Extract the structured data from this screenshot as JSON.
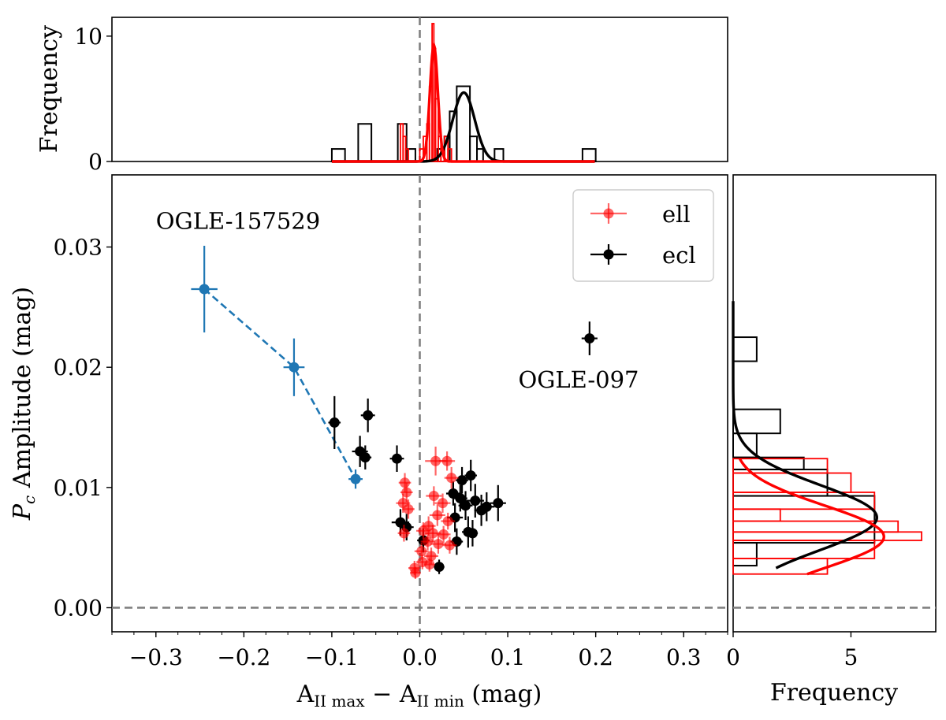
{
  "chart_data": {
    "type": "scatter",
    "main": {
      "xlabel_base": "A",
      "xlabel_sub1": "II max",
      "xlabel_mid": " − A",
      "xlabel_sub2": "II min",
      "xlabel_unit": " (mag)",
      "ylabel_var": "P",
      "ylabel_sub": "c",
      "ylabel_rest": " Amplitude (mag)",
      "xlim": [
        -0.35,
        0.35
      ],
      "ylim": [
        -0.002,
        0.036
      ],
      "xticks": [
        -0.3,
        -0.2,
        -0.1,
        0.0,
        0.1,
        0.2,
        0.3
      ],
      "xtick_labels": [
        "−0.3",
        "−0.2",
        "−0.1",
        "0.0",
        "0.1",
        "0.2",
        "0.3"
      ],
      "yticks": [
        0.0,
        0.01,
        0.02,
        0.03
      ],
      "ytick_labels": [
        "0.00",
        "0.01",
        "0.02",
        "0.03"
      ],
      "ref_lines": {
        "x": 0.0,
        "y": 0.0
      },
      "legend": {
        "position": "top-right",
        "entries": [
          {
            "label": "ell",
            "color": "#ff0000"
          },
          {
            "label": "ecl",
            "color": "#000000"
          }
        ]
      },
      "annotations": [
        {
          "text": "OGLE-157529",
          "x": -0.3,
          "y": 0.0315
        },
        {
          "text": "OGLE-097",
          "x": 0.112,
          "y": 0.0183
        }
      ],
      "series": [
        {
          "name": "OGLE-157529 track",
          "color": "#1f77b4",
          "connected": true,
          "points": [
            {
              "x": -0.245,
              "y": 0.0265,
              "xerr": 0.015,
              "yerr": 0.0036
            },
            {
              "x": -0.143,
              "y": 0.02,
              "xerr": 0.012,
              "yerr": 0.0024
            },
            {
              "x": -0.073,
              "y": 0.0107,
              "xerr": 0.008,
              "yerr": 0.0008
            }
          ]
        },
        {
          "name": "ecl",
          "color": "#000000",
          "points": [
            {
              "x": 0.193,
              "y": 0.0224,
              "xerr": 0.009,
              "yerr": 0.0014
            },
            {
              "x": -0.097,
              "y": 0.0154,
              "xerr": 0.007,
              "yerr": 0.0022
            },
            {
              "x": -0.059,
              "y": 0.016,
              "xerr": 0.008,
              "yerr": 0.0014
            },
            {
              "x": -0.068,
              "y": 0.013,
              "xerr": 0.009,
              "yerr": 0.0013
            },
            {
              "x": -0.062,
              "y": 0.0125,
              "xerr": 0.007,
              "yerr": 0.001
            },
            {
              "x": -0.026,
              "y": 0.0124,
              "xerr": 0.008,
              "yerr": 0.0011
            },
            {
              "x": -0.022,
              "y": 0.0071,
              "xerr": 0.01,
              "yerr": 0.0011
            },
            {
              "x": -0.015,
              "y": 0.0067,
              "xerr": 0.008,
              "yerr": 0.0011
            },
            {
              "x": 0.004,
              "y": 0.0056,
              "xerr": 0.007,
              "yerr": 0.001
            },
            {
              "x": 0.022,
              "y": 0.0034,
              "xerr": 0.006,
              "yerr": 0.0006
            },
            {
              "x": 0.038,
              "y": 0.0095,
              "xerr": 0.008,
              "yerr": 0.001
            },
            {
              "x": 0.048,
              "y": 0.0106,
              "xerr": 0.007,
              "yerr": 0.0011
            },
            {
              "x": 0.058,
              "y": 0.011,
              "xerr": 0.007,
              "yerr": 0.0013
            },
            {
              "x": 0.046,
              "y": 0.0091,
              "xerr": 0.008,
              "yerr": 0.0011
            },
            {
              "x": 0.052,
              "y": 0.0085,
              "xerr": 0.008,
              "yerr": 0.0012
            },
            {
              "x": 0.063,
              "y": 0.0089,
              "xerr": 0.01,
              "yerr": 0.0014
            },
            {
              "x": 0.07,
              "y": 0.0081,
              "xerr": 0.008,
              "yerr": 0.0013
            },
            {
              "x": 0.076,
              "y": 0.0084,
              "xerr": 0.009,
              "yerr": 0.0012
            },
            {
              "x": 0.089,
              "y": 0.0087,
              "xerr": 0.009,
              "yerr": 0.0015
            },
            {
              "x": 0.04,
              "y": 0.0075,
              "xerr": 0.009,
              "yerr": 0.0012
            },
            {
              "x": 0.055,
              "y": 0.0063,
              "xerr": 0.007,
              "yerr": 0.0013
            },
            {
              "x": 0.06,
              "y": 0.0062,
              "xerr": 0.006,
              "yerr": 0.0011
            },
            {
              "x": 0.042,
              "y": 0.0055,
              "xerr": 0.007,
              "yerr": 0.0011
            }
          ]
        },
        {
          "name": "ell",
          "color": "#ff0000",
          "alpha": 0.6,
          "points": [
            {
              "x": -0.017,
              "y": 0.0104,
              "xerr": 0.007,
              "yerr": 0.0008
            },
            {
              "x": -0.015,
              "y": 0.0096,
              "xerr": 0.007,
              "yerr": 0.0008
            },
            {
              "x": -0.019,
              "y": 0.0087,
              "xerr": 0.008,
              "yerr": 0.0008
            },
            {
              "x": -0.013,
              "y": 0.0082,
              "xerr": 0.007,
              "yerr": 0.0008
            },
            {
              "x": -0.018,
              "y": 0.0062,
              "xerr": 0.007,
              "yerr": 0.0007
            },
            {
              "x": 0.018,
              "y": 0.0122,
              "xerr": 0.012,
              "yerr": 0.0012
            },
            {
              "x": 0.031,
              "y": 0.0122,
              "xerr": 0.009,
              "yerr": 0.0008
            },
            {
              "x": 0.036,
              "y": 0.0108,
              "xerr": 0.008,
              "yerr": 0.0009
            },
            {
              "x": 0.016,
              "y": 0.0093,
              "xerr": 0.009,
              "yerr": 0.0008
            },
            {
              "x": 0.026,
              "y": 0.0087,
              "xerr": 0.009,
              "yerr": 0.0008
            },
            {
              "x": 0.02,
              "y": 0.0077,
              "xerr": 0.009,
              "yerr": 0.0009
            },
            {
              "x": 0.032,
              "y": 0.0072,
              "xerr": 0.008,
              "yerr": 0.0007
            },
            {
              "x": 0.01,
              "y": 0.0068,
              "xerr": 0.008,
              "yerr": 0.0008
            },
            {
              "x": 0.004,
              "y": 0.0064,
              "xerr": 0.008,
              "yerr": 0.0007
            },
            {
              "x": 0.015,
              "y": 0.0062,
              "xerr": 0.009,
              "yerr": 0.0007
            },
            {
              "x": 0.027,
              "y": 0.0061,
              "xerr": 0.008,
              "yerr": 0.0007
            },
            {
              "x": 0.009,
              "y": 0.0055,
              "xerr": 0.008,
              "yerr": 0.0007
            },
            {
              "x": 0.021,
              "y": 0.0053,
              "xerr": 0.009,
              "yerr": 0.0008
            },
            {
              "x": 0.034,
              "y": 0.0052,
              "xerr": 0.008,
              "yerr": 0.0007
            },
            {
              "x": 0.002,
              "y": 0.0047,
              "xerr": 0.008,
              "yerr": 0.0007
            },
            {
              "x": 0.013,
              "y": 0.0043,
              "xerr": 0.008,
              "yerr": 0.0007
            },
            {
              "x": 0.003,
              "y": 0.0038,
              "xerr": 0.007,
              "yerr": 0.0006
            },
            {
              "x": -0.006,
              "y": 0.0033,
              "xerr": 0.007,
              "yerr": 0.0006
            },
            {
              "x": 0.011,
              "y": 0.0036,
              "xerr": 0.006,
              "yerr": 0.0006
            },
            {
              "x": -0.005,
              "y": 0.0029,
              "xerr": 0.006,
              "yerr": 0.0005
            }
          ]
        }
      ]
    },
    "top_hist": {
      "ylabel": "Frequency",
      "ylim": [
        0,
        11.5
      ],
      "yticks": [
        0,
        10
      ],
      "ytick_labels": [
        "0",
        "10"
      ],
      "ref_line_x": 0.0,
      "ecl_bins": [
        {
          "x0": -0.1,
          "x1": -0.085,
          "n": 1
        },
        {
          "x0": -0.07,
          "x1": -0.055,
          "n": 3
        },
        {
          "x0": -0.025,
          "x1": -0.015,
          "n": 3
        },
        {
          "x0": -0.015,
          "x1": -0.005,
          "n": 1
        },
        {
          "x0": 0.02,
          "x1": 0.028,
          "n": 1
        },
        {
          "x0": 0.028,
          "x1": 0.034,
          "n": 2
        },
        {
          "x0": 0.034,
          "x1": 0.042,
          "n": 4
        },
        {
          "x0": 0.042,
          "x1": 0.057,
          "n": 6
        },
        {
          "x0": 0.057,
          "x1": 0.065,
          "n": 2
        },
        {
          "x0": 0.065,
          "x1": 0.072,
          "n": 1
        },
        {
          "x0": 0.085,
          "x1": 0.095,
          "n": 1
        },
        {
          "x0": 0.185,
          "x1": 0.2,
          "n": 1
        }
      ],
      "ell_bins": [
        {
          "x0": -0.022,
          "x1": -0.019,
          "n": 3
        },
        {
          "x0": -0.019,
          "x1": -0.016,
          "n": 2
        },
        {
          "x0": -0.016,
          "x1": -0.013,
          "n": 1
        },
        {
          "x0": 0.0,
          "x1": 0.004,
          "n": 1
        },
        {
          "x0": 0.004,
          "x1": 0.008,
          "n": 2
        },
        {
          "x0": 0.008,
          "x1": 0.011,
          "n": 3
        },
        {
          "x0": 0.011,
          "x1": 0.014,
          "n": 6
        },
        {
          "x0": 0.014,
          "x1": 0.016,
          "n": 11
        },
        {
          "x0": 0.016,
          "x1": 0.018,
          "n": 9
        },
        {
          "x0": 0.018,
          "x1": 0.021,
          "n": 5
        },
        {
          "x0": 0.021,
          "x1": 0.024,
          "n": 2
        },
        {
          "x0": 0.024,
          "x1": 0.028,
          "n": 1
        },
        {
          "x0": 0.028,
          "x1": 0.032,
          "n": 2
        },
        {
          "x0": 0.032,
          "x1": 0.036,
          "n": 1
        }
      ],
      "ecl_fit": {
        "mu": 0.05,
        "sigma": 0.0125,
        "peak": 5.5
      },
      "ell_fit": {
        "mu": 0.016,
        "sigma": 0.0045,
        "peak": 9.3
      }
    },
    "right_hist": {
      "xlabel": "Frequency",
      "xlim": [
        0,
        8.6
      ],
      "xticks": [
        0,
        5
      ],
      "xtick_labels": [
        "0",
        "5"
      ],
      "ref_line_y": 0.0,
      "ecl_bins": [
        {
          "y0": 0.0035,
          "y1": 0.0054,
          "n": 1
        },
        {
          "y0": 0.0054,
          "y1": 0.0093,
          "n": 6
        },
        {
          "y0": 0.0093,
          "y1": 0.0115,
          "n": 4
        },
        {
          "y0": 0.0115,
          "y1": 0.0125,
          "n": 3
        },
        {
          "y0": 0.0125,
          "y1": 0.0145,
          "n": 1
        },
        {
          "y0": 0.0145,
          "y1": 0.0165,
          "n": 2
        },
        {
          "y0": 0.0205,
          "y1": 0.0225,
          "n": 1
        }
      ],
      "ell_bins": [
        {
          "y0": 0.0028,
          "y1": 0.0041,
          "n": 4
        },
        {
          "y0": 0.0041,
          "y1": 0.0056,
          "n": 6
        },
        {
          "y0": 0.0056,
          "y1": 0.0063,
          "n": 8
        },
        {
          "y0": 0.0063,
          "y1": 0.0072,
          "n": 7
        },
        {
          "y0": 0.0072,
          "y1": 0.0082,
          "n": 2
        },
        {
          "y0": 0.0082,
          "y1": 0.0096,
          "n": 6
        },
        {
          "y0": 0.0096,
          "y1": 0.0112,
          "n": 5
        },
        {
          "y0": 0.0112,
          "y1": 0.0124,
          "n": 4
        }
      ],
      "ecl_fit": {
        "mu": 0.0075,
        "sigma": 0.0027,
        "peak": 6.1,
        "ymin": 0.0033,
        "ymax": 0.0255
      },
      "ell_fit": {
        "mu": 0.0059,
        "sigma": 0.0026,
        "peak": 6.4,
        "ymin": 0.0028,
        "ymax": 0.0124
      }
    }
  }
}
